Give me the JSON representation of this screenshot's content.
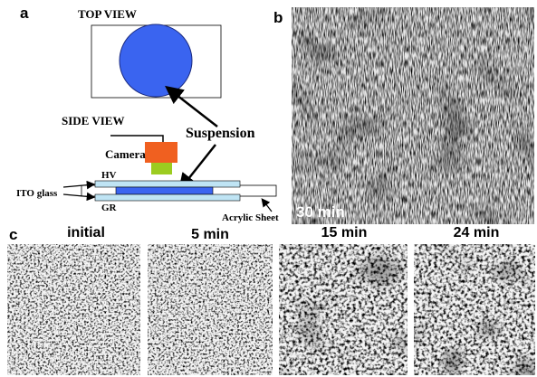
{
  "panel_a": {
    "label": "a",
    "top_view": "TOP VIEW",
    "side_view": "SIDE VIEW",
    "suspension": "Suspension",
    "camera": "Camera",
    "hv": "HV",
    "gr": "GR",
    "ito_glass": "ITO glass",
    "acrylic_sheet": "Acrylic Sheet"
  },
  "panel_b": {
    "label": "b",
    "time": "30 min"
  },
  "panel_c": {
    "label": "c",
    "frames": [
      "initial",
      "5 min",
      "15 min",
      "24 min"
    ]
  }
}
